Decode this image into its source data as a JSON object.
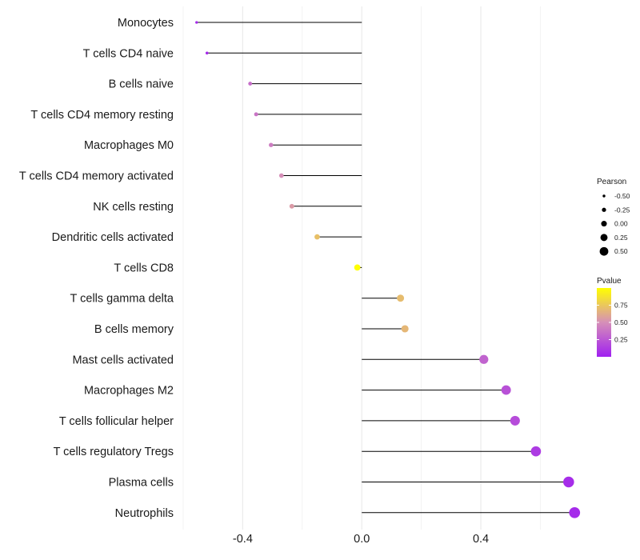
{
  "chart_data": {
    "type": "lollipop",
    "categories": [
      "Monocytes",
      "T cells CD4 naive",
      "B cells naive",
      "T cells CD4 memory resting",
      "Macrophages M0",
      "T cells CD4 memory activated",
      "NK cells resting",
      "Dendritic cells activated",
      "T cells CD8",
      "T cells gamma delta",
      "B cells memory",
      "Mast cells activated",
      "Macrophages M2",
      "T cells follicular helper",
      "T cells regulatory  Tregs",
      "Plasma cells",
      "Neutrophils"
    ],
    "values": [
      -0.555,
      -0.52,
      -0.375,
      -0.355,
      -0.305,
      -0.27,
      -0.235,
      -0.15,
      -0.015,
      0.13,
      0.145,
      0.41,
      0.485,
      0.515,
      0.585,
      0.695,
      0.715
    ],
    "pvalues": [
      0.05,
      0.05,
      0.35,
      0.38,
      0.42,
      0.5,
      0.55,
      0.72,
      1.0,
      0.7,
      0.68,
      0.3,
      0.22,
      0.2,
      0.12,
      0.06,
      0.05
    ],
    "xticks": [
      "-0.4",
      "0.0",
      "0.4"
    ],
    "xtick_values": [
      -0.4,
      0.0,
      0.4
    ],
    "xlim": [
      -0.6,
      0.76
    ],
    "size_legend": {
      "title": "Pearson",
      "labels": [
        "-0.50",
        "-0.25",
        "0.00",
        "0.25",
        "0.50"
      ],
      "values": [
        -0.5,
        -0.25,
        0.0,
        0.25,
        0.5
      ]
    },
    "color_legend": {
      "title": "Pvalue",
      "labels": [
        "0.75",
        "0.50",
        "0.25"
      ],
      "values": [
        0.75,
        0.5,
        0.25
      ],
      "range": [
        0.0,
        1.0
      ],
      "low_color": "#a020f0",
      "mid_color": "#d68fb8",
      "high_color": "#ffff00"
    },
    "segment_color": "#000000",
    "grid_color": "#ebebeb"
  }
}
